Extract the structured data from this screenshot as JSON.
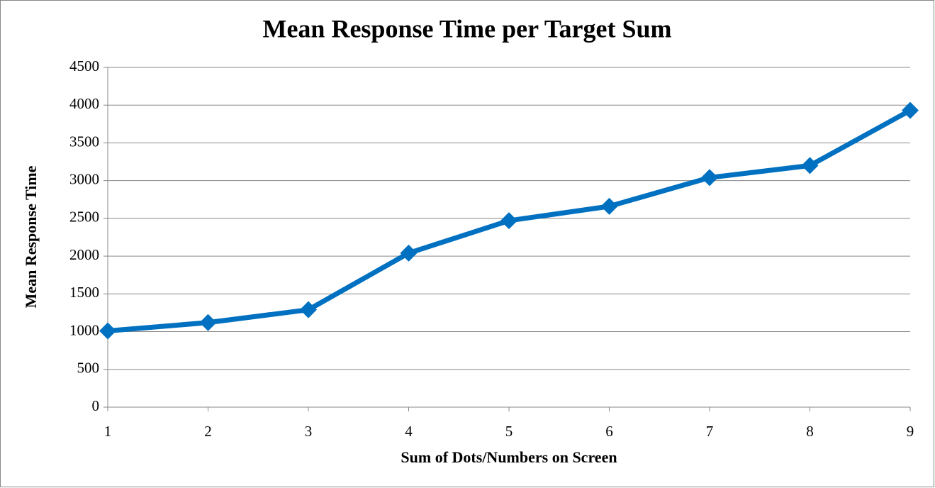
{
  "chart_data": {
    "type": "line",
    "title": "Mean Response Time per Target Sum",
    "x_label": "Sum of Dots/Numbers on Screen",
    "y_label": "Mean Response Time",
    "x": [
      1,
      2,
      3,
      4,
      5,
      6,
      7,
      8,
      9
    ],
    "series": [
      {
        "values": [
          1010,
          1120,
          1290,
          2040,
          2470,
          2660,
          3040,
          3200,
          3930
        ],
        "color": "#0070c0"
      }
    ],
    "xlim": [
      1,
      9
    ],
    "xticks": [
      1,
      2,
      3,
      4,
      5,
      6,
      7,
      8,
      9
    ],
    "ylim": [
      0,
      4500
    ],
    "yticks": [
      0,
      500,
      1000,
      1500,
      2000,
      2500,
      3000,
      3500,
      4000,
      4500
    ],
    "grid": true
  }
}
